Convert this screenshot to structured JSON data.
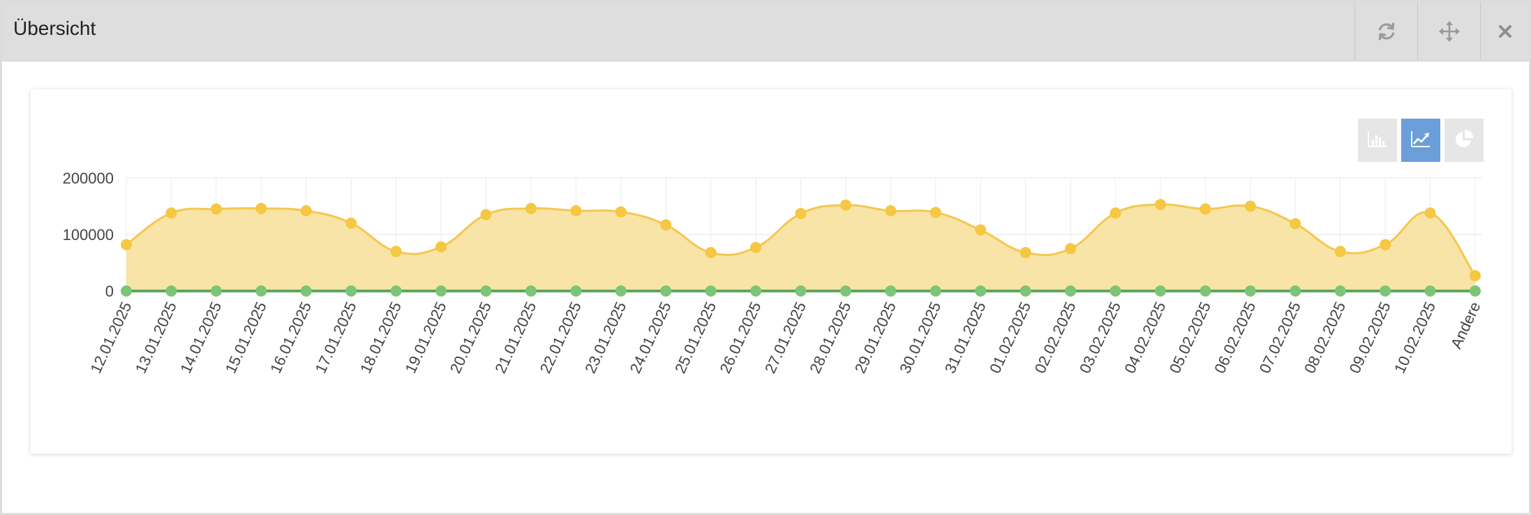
{
  "panel": {
    "title": "Übersicht",
    "buttons": [
      {
        "name": "refresh-icon"
      },
      {
        "name": "move-icon"
      },
      {
        "name": "close-icon"
      }
    ]
  },
  "chart_toolbar": {
    "options": [
      {
        "name": "bar-chart-icon",
        "active": false
      },
      {
        "name": "line-chart-icon",
        "active": true
      },
      {
        "name": "pie-chart-icon",
        "active": false
      }
    ]
  },
  "colors": {
    "series_1_line": "#f5c74e",
    "series_1_fill": "#f8e3a2",
    "series_1_point": "#f5c742",
    "series_2_line": "#5aa85a",
    "series_2_point": "#7cc576",
    "active_button": "#6a9fd9"
  },
  "chart_data": {
    "type": "area",
    "title": "",
    "xlabel": "",
    "ylabel": "",
    "ylim": [
      0,
      200000
    ],
    "yticks": [
      0,
      100000,
      200000
    ],
    "ytick_labels": [
      "0",
      "100000",
      "200000"
    ],
    "grid": true,
    "categories": [
      "12.01.2025",
      "13.01.2025",
      "14.01.2025",
      "15.01.2025",
      "16.01.2025",
      "17.01.2025",
      "18.01.2025",
      "19.01.2025",
      "20.01.2025",
      "21.01.2025",
      "22.01.2025",
      "23.01.2025",
      "24.01.2025",
      "25.01.2025",
      "26.01.2025",
      "27.01.2025",
      "28.01.2025",
      "29.01.2025",
      "30.01.2025",
      "31.01.2025",
      "01.02.2025",
      "02.02.2025",
      "03.02.2025",
      "04.02.2025",
      "05.02.2025",
      "06.02.2025",
      "07.02.2025",
      "08.02.2025",
      "09.02.2025",
      "10.02.2025",
      "Andere"
    ],
    "series": [
      {
        "values": [
          82000,
          138000,
          145000,
          146000,
          142000,
          120000,
          70000,
          78000,
          135000,
          146000,
          142000,
          140000,
          117000,
          68000,
          77000,
          137000,
          152000,
          142000,
          139000,
          108000,
          68000,
          75000,
          138000,
          153000,
          145000,
          150000,
          119000,
          70000,
          82000,
          138000,
          27000
        ]
      },
      {
        "values": [
          0,
          0,
          0,
          0,
          0,
          0,
          0,
          0,
          0,
          0,
          0,
          0,
          0,
          0,
          0,
          0,
          0,
          0,
          0,
          0,
          0,
          0,
          0,
          0,
          0,
          0,
          0,
          0,
          0,
          0,
          0
        ]
      }
    ]
  }
}
